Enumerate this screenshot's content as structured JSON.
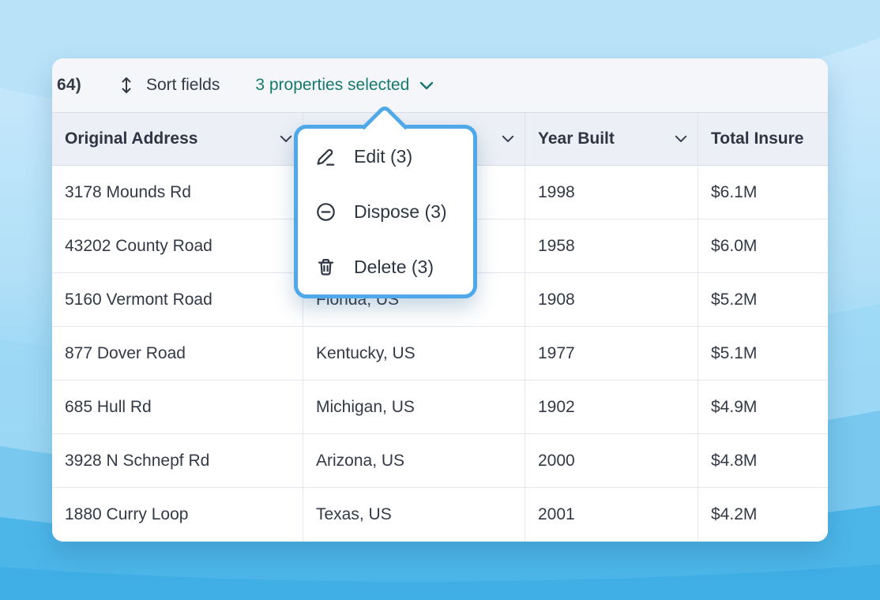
{
  "toolbar": {
    "left_text": "64)",
    "sort_label": "Sort fields",
    "selection_label": "3 properties selected"
  },
  "menu": {
    "items": [
      {
        "label": "Edit (3)",
        "icon": "pencil-icon"
      },
      {
        "label": "Dispose (3)",
        "icon": "circle-minus-icon"
      },
      {
        "label": "Delete (3)",
        "icon": "trash-icon"
      }
    ]
  },
  "table": {
    "columns": [
      {
        "label": "Original Address",
        "has_chevron": true
      },
      {
        "label": "",
        "has_chevron": true
      },
      {
        "label": "Year Built",
        "has_chevron": true
      },
      {
        "label": "Total Insure",
        "has_chevron": false
      }
    ],
    "rows": [
      [
        "3178 Mounds Rd",
        "",
        "1998",
        "$6.1M"
      ],
      [
        "43202 County Road",
        "",
        "1958",
        "$6.0M"
      ],
      [
        "5160 Vermont Road",
        "Florida, US",
        "1908",
        "$5.2M"
      ],
      [
        "877 Dover Road",
        "Kentucky, US",
        "1977",
        "$5.1M"
      ],
      [
        "685 Hull Rd",
        "Michigan, US",
        "1902",
        "$4.9M"
      ],
      [
        "3928 N Schnepf Rd",
        "Arizona, US",
        "2000",
        "$4.8M"
      ],
      [
        "1880 Curry Loop",
        "Texas, US",
        "2001",
        "$4.2M"
      ]
    ]
  },
  "colors": {
    "accent_teal": "#17796D",
    "popup_border": "#4FA9E9",
    "toolbar_bg": "#F4F6FA",
    "header_bg": "#ECEFF6",
    "text_dark": "#333945",
    "background_blue_top": "#C8E8FB",
    "background_blue_bottom": "#47B2E7"
  },
  "icons": {
    "sort": "up-down-arrow",
    "selection_dropdown": "chevron-down",
    "column_header": "chevron-down",
    "edit": "pencil",
    "dispose": "circle-minus",
    "delete": "trash"
  }
}
